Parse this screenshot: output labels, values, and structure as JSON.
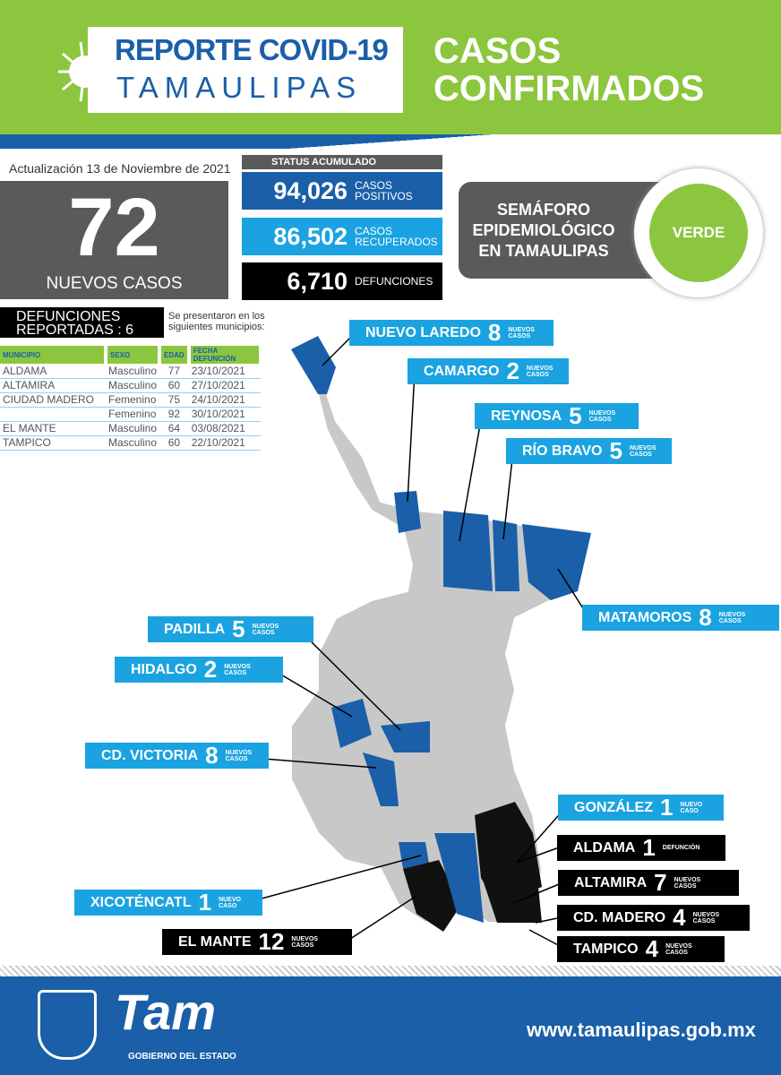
{
  "header": {
    "logo_title": "REPORTE COVID-19",
    "logo_subtitle": "TAMAULIPAS",
    "title_line1": "CASOS",
    "title_line2": "CONFIRMADOS"
  },
  "update": "Actualización 13 de Noviembre de 2021",
  "new_cases": {
    "value": "72",
    "label": "NUEVOS CASOS"
  },
  "status": {
    "title": "STATUS ACUMULADO",
    "items": [
      {
        "value": "94,026",
        "label1": "CASOS",
        "label2": "POSITIVOS",
        "color": "#1a5fa8"
      },
      {
        "value": "86,502",
        "label1": "CASOS",
        "label2": "RECUPERADOS",
        "color": "#1aa3e0"
      },
      {
        "value": "6,710",
        "label1": "DEFUNCIONES",
        "label2": "",
        "color": "#000000"
      }
    ]
  },
  "semaforo": {
    "line1": "SEMÁFORO",
    "line2": "EPIDEMIOLÓGICO",
    "line3": "EN TAMAULIPAS",
    "status": "VERDE",
    "color": "#8cc63f"
  },
  "deaths": {
    "title1": "DEFUNCIONES",
    "title2": "REPORTADAS : 6",
    "note1": "Se presentaron en los",
    "note2": "siguientes municipios:",
    "columns": [
      "MUNICIPIO",
      "SEXO",
      "EDAD",
      "FECHA DEFUNCIÓN"
    ],
    "rows": [
      [
        "ALDAMA",
        "Masculino",
        "77",
        "23/10/2021"
      ],
      [
        "ALTAMIRA",
        "Masculino",
        "60",
        "27/10/2021"
      ],
      [
        "CIUDAD MADERO",
        "Femenino",
        "75",
        "24/10/2021"
      ],
      [
        "",
        "Femenino",
        "92",
        "30/10/2021"
      ],
      [
        "EL MANTE",
        "Masculino",
        "64",
        "03/08/2021"
      ],
      [
        "TAMPICO",
        "Masculino",
        "60",
        "22/10/2021"
      ]
    ]
  },
  "map_labels": [
    {
      "name": "NUEVO LAREDO",
      "num": "8",
      "sub1": "NUEVOS",
      "sub2": "CASOS",
      "style": "cy"
    },
    {
      "name": "CAMARGO",
      "num": "2",
      "sub1": "NUEVOS",
      "sub2": "CASOS",
      "style": "cy"
    },
    {
      "name": "REYNOSA",
      "num": "5",
      "sub1": "NUEVOS",
      "sub2": "CASOS",
      "style": "cy"
    },
    {
      "name": "RÍO BRAVO",
      "num": "5",
      "sub1": "NUEVOS",
      "sub2": "CASOS",
      "style": "cy"
    },
    {
      "name": "MATAMOROS",
      "num": "8",
      "sub1": "NUEVOS",
      "sub2": "CASOS",
      "style": "cy"
    },
    {
      "name": "PADILLA",
      "num": "5",
      "sub1": "NUEVOS",
      "sub2": "CASOS",
      "style": "cy"
    },
    {
      "name": "HIDALGO",
      "num": "2",
      "sub1": "NUEVOS",
      "sub2": "CASOS",
      "style": "cy"
    },
    {
      "name": "CD. VICTORIA",
      "num": "8",
      "sub1": "NUEVOS",
      "sub2": "CASOS",
      "style": "cy"
    },
    {
      "name": "GONZÁLEZ",
      "num": "1",
      "sub1": "NUEVO",
      "sub2": "CASO",
      "style": "cy"
    },
    {
      "name": "XICOTÉNCATL",
      "num": "1",
      "sub1": "NUEVO",
      "sub2": "CASO",
      "style": "cy"
    },
    {
      "name": "ALDAMA",
      "num": "1",
      "sub1": "DEFUNCIÓN",
      "sub2": "",
      "style": "bk"
    },
    {
      "name": "ALTAMIRA",
      "num": "7",
      "sub1": "NUEVOS",
      "sub2": "CASOS",
      "style": "bk"
    },
    {
      "name": "CD. MADERO",
      "num": "4",
      "sub1": "NUEVOS",
      "sub2": "CASOS",
      "style": "bk"
    },
    {
      "name": "TAMPICO",
      "num": "4",
      "sub1": "NUEVOS",
      "sub2": "CASOS",
      "style": "bk"
    },
    {
      "name": "EL MANTE",
      "num": "12",
      "sub1": "NUEVOS",
      "sub2": "CASOS",
      "style": "bk"
    }
  ],
  "footer": {
    "logo": "Tam",
    "gov": "GOBIERNO DEL ESTADO",
    "url": "www.tamaulipas.gob.mx"
  }
}
